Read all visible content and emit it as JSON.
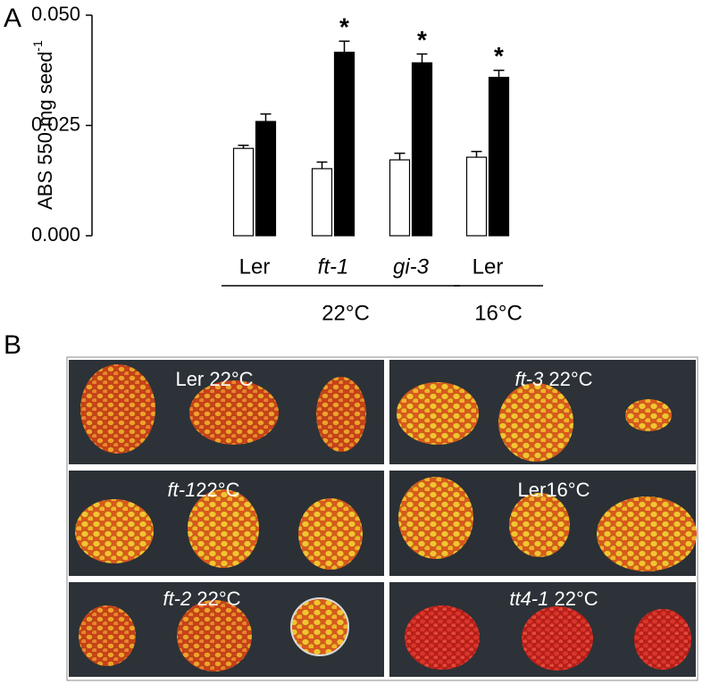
{
  "panel_a": "A",
  "panel_b": "B",
  "chart_data": {
    "type": "bar",
    "y_label": "ABS 550 mg seed",
    "y_label_superscript": "-1",
    "categories": [
      "Ler",
      "ft-1",
      "gi-3",
      "Ler"
    ],
    "category_italic": [
      false,
      true,
      true,
      false
    ],
    "groups": [
      {
        "label": "22°C",
        "from": 0,
        "to": 2
      },
      {
        "label": "16°C",
        "from": 3,
        "to": 3
      }
    ],
    "series": [
      {
        "color": "#ffffff",
        "values": [
          0.0198,
          0.0152,
          0.0172,
          0.0178
        ],
        "errors": [
          0.0007,
          0.0015,
          0.0015,
          0.0013
        ]
      },
      {
        "color": "#000000",
        "values": [
          0.0259,
          0.0416,
          0.0392,
          0.0359
        ],
        "errors": [
          0.0017,
          0.0025,
          0.002,
          0.0016
        ],
        "annotations": [
          null,
          "*",
          "*",
          "*"
        ]
      }
    ],
    "ylim": [
      0,
      0.05
    ],
    "yticks": [
      {
        "value": 0,
        "label": "0.000"
      },
      {
        "value": 0.025,
        "label": "0.025"
      },
      {
        "value": 0.05,
        "label": "0.050"
      }
    ]
  },
  "photos": [
    {
      "parts": [
        {
          "text": "Ler 22°C",
          "italic": false
        }
      ]
    },
    {
      "parts": [
        {
          "text": "ft-3",
          "italic": true
        },
        {
          "text": " 22°C",
          "italic": false
        }
      ]
    },
    {
      "parts": [
        {
          "text": "ft-1",
          "italic": true
        },
        {
          "text": "22°C",
          "italic": false
        }
      ]
    },
    {
      "parts": [
        {
          "text": "Ler16°C",
          "italic": false
        }
      ]
    },
    {
      "parts": [
        {
          "text": "ft-2",
          "italic": true
        },
        {
          "text": " 22°C",
          "italic": false
        }
      ]
    },
    {
      "parts": [
        {
          "text": "tt4-1",
          "italic": true
        },
        {
          "text": " 22°C",
          "italic": false
        }
      ]
    }
  ]
}
